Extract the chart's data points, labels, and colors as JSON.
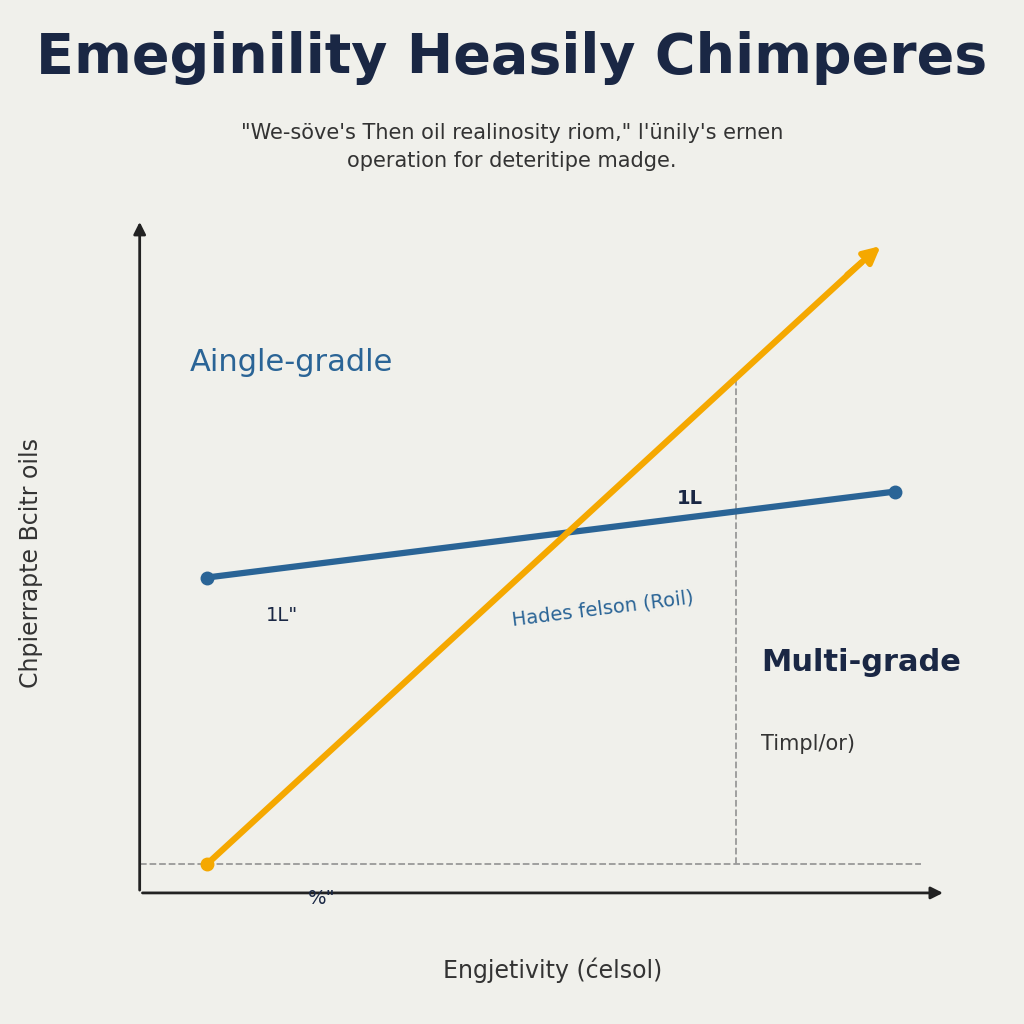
{
  "title": "Emeginility Heasily Chimperes",
  "subtitle": "\"We-söve's Then oil realinosity riom,\" l'ünily's ernen\noperation for deteritipe madge.",
  "xlabel": "Engjetivity (ćelsol)",
  "ylabel": "Chpierrapte Bcitr oils",
  "background_color": "#f0f0eb",
  "title_color": "#1a2744",
  "subtitle_color": "#333333",
  "label_color": "#333333",
  "single_grade_label": "Aingle-gradle",
  "single_grade_color": "#2a6496",
  "multi_grade_label": "Multi-grade",
  "multi_grade_sublabel": "Timpl/or)",
  "multi_grade_color": "#f5a800",
  "annotation_1l_low": "1L\"",
  "annotation_1l_high": "1L",
  "annotation_percent": "%\"",
  "rotated_label": "Hades felson (Roil)",
  "title_fontsize": 40,
  "subtitle_fontsize": 15,
  "axis_label_fontsize": 17,
  "annotation_fontsize": 14,
  "single_grade_fontsize": 22,
  "multi_grade_fontsize": 22
}
